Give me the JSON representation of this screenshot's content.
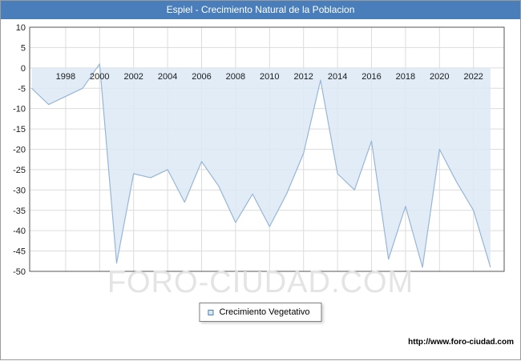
{
  "title": "Espiel - Crecimiento Natural de la Poblacion",
  "watermark": "FORO-CIUDAD.COM",
  "legend": {
    "label": "Crecimiento Vegetativo"
  },
  "footer": {
    "url": "http://www.foro-ciudad.com"
  },
  "colors": {
    "header_bg": "#4a7eba",
    "line": "#97b6d6",
    "fill": "#dce9f6",
    "grid": "#dcdcdc",
    "plot_border": "#555555",
    "axis_text": "#1a1a1a",
    "watermark": "#e4e4e4"
  },
  "chart_data": {
    "type": "area",
    "title": "Espiel - Crecimiento Natural de la Poblacion",
    "xlabel": "",
    "ylabel": "",
    "ylim": [
      -50,
      10
    ],
    "baseline": 0,
    "grid": true,
    "legend_position": "bottom",
    "x": [
      1996,
      1997,
      1998,
      1999,
      2000,
      2001,
      2002,
      2003,
      2004,
      2005,
      2006,
      2007,
      2008,
      2009,
      2010,
      2011,
      2012,
      2013,
      2014,
      2015,
      2016,
      2017,
      2018,
      2019,
      2020,
      2021,
      2022,
      2023
    ],
    "series": [
      {
        "name": "Crecimiento Vegetativo",
        "values": [
          -5,
          -9,
          -7,
          -5,
          1,
          -48,
          -26,
          -27,
          -25,
          -33,
          -23,
          -29,
          -38,
          -31,
          -39,
          -31,
          -21,
          -3,
          -26,
          -30,
          -18,
          -47,
          -34,
          -49,
          -20,
          -28,
          -35,
          -49
        ]
      }
    ],
    "y_ticks": [
      10,
      5,
      0,
      -5,
      -10,
      -15,
      -20,
      -25,
      -30,
      -35,
      -40,
      -45,
      -50
    ],
    "x_tick_labels": [
      1998,
      2000,
      2002,
      2004,
      2006,
      2008,
      2010,
      2012,
      2014,
      2016,
      2018,
      2020,
      2022
    ]
  }
}
